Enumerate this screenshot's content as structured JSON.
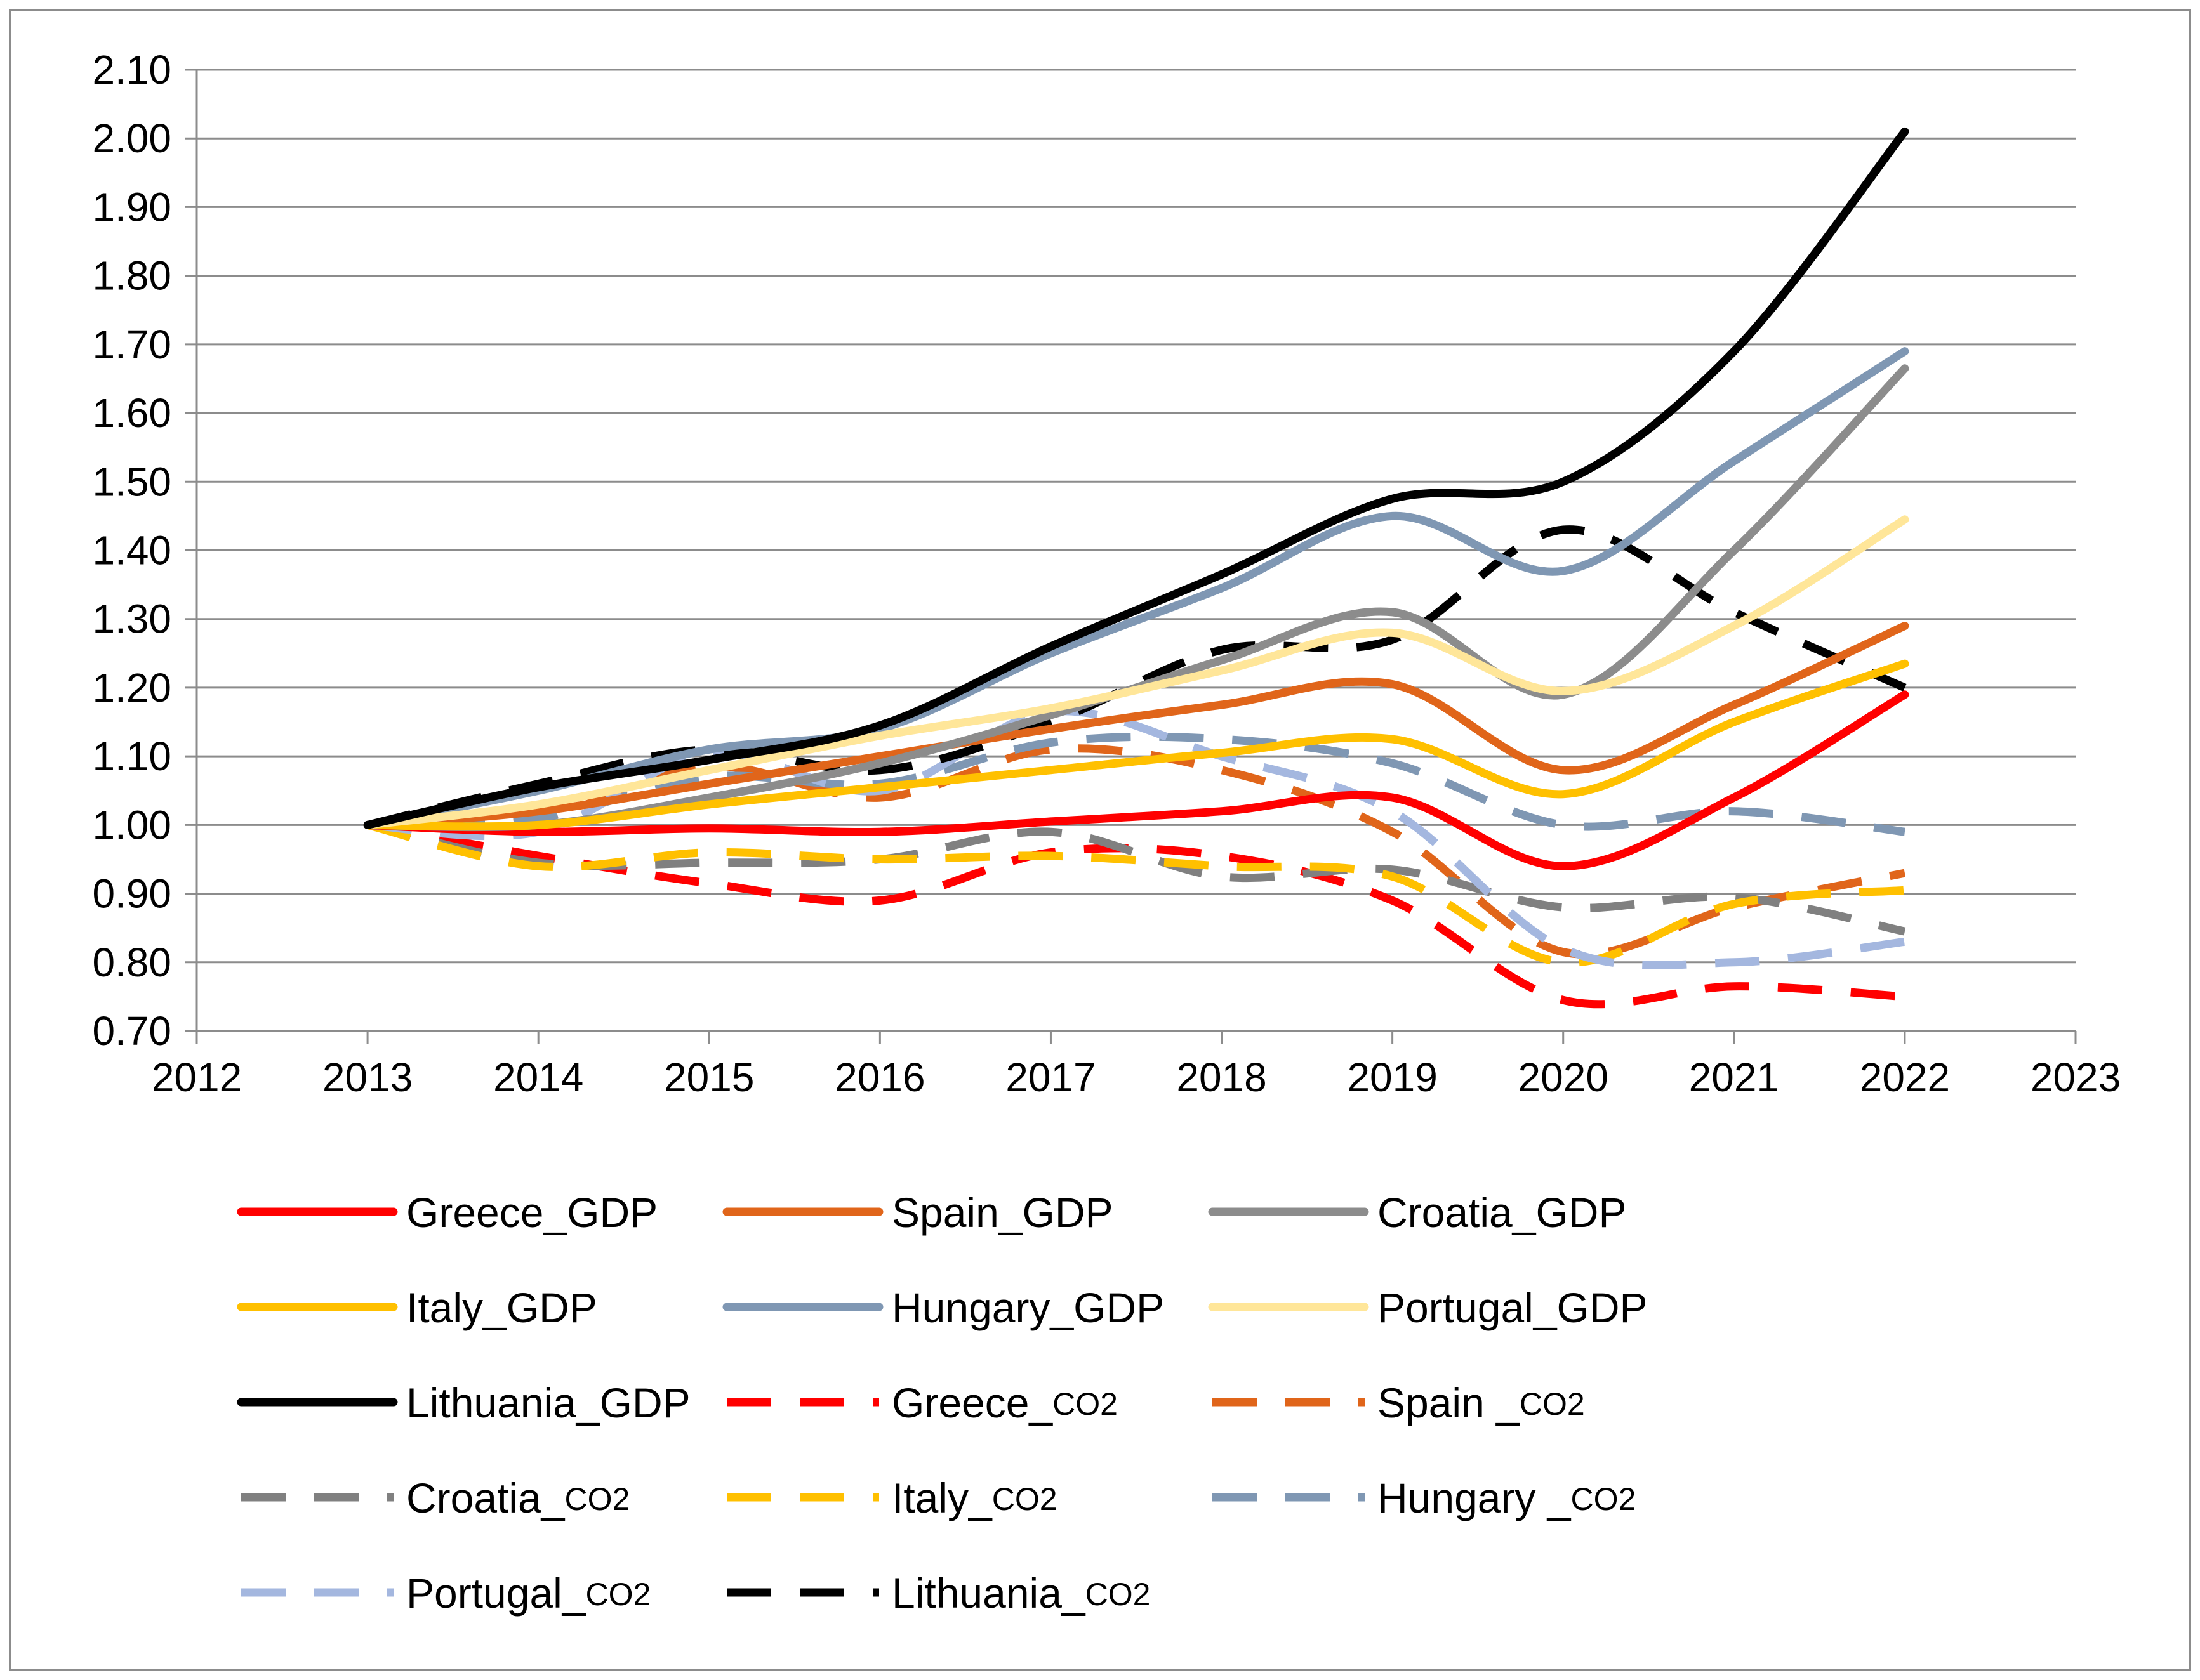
{
  "chart_data": {
    "type": "line",
    "title": "",
    "xlabel": "",
    "ylabel": "",
    "xlim": [
      2012,
      2023
    ],
    "ylim": [
      0.7,
      2.1
    ],
    "x_ticks": [
      "2012",
      "2013",
      "2014",
      "2015",
      "2016",
      "2017",
      "2018",
      "2019",
      "2020",
      "2021",
      "2022",
      "2023"
    ],
    "y_ticks": [
      "0.70",
      "0.80",
      "0.90",
      "1.00",
      "1.10",
      "1.20",
      "1.30",
      "1.40",
      "1.50",
      "1.60",
      "1.70",
      "1.80",
      "1.90",
      "2.00",
      "2.10"
    ],
    "grid": "horizontal",
    "legend_position": "bottom",
    "x": [
      2013,
      2014,
      2015,
      2016,
      2017,
      2018,
      2019,
      2020,
      2021,
      2022
    ],
    "series": [
      {
        "name": "Greece_GDP",
        "legend_label": "Greece_GDP",
        "legend_sub": "",
        "color": "#ff0000",
        "dash": "solid",
        "values": [
          1.0,
          0.99,
          0.995,
          0.99,
          1.005,
          1.02,
          1.04,
          0.94,
          1.04,
          1.19
        ]
      },
      {
        "name": "Spain_GDP",
        "legend_label": "Spain_GDP",
        "legend_sub": "",
        "color": "#e0651a",
        "dash": "solid",
        "values": [
          1.0,
          1.02,
          1.06,
          1.1,
          1.14,
          1.175,
          1.205,
          1.08,
          1.175,
          1.29
        ]
      },
      {
        "name": "Croatia_GDP",
        "legend_label": "Croatia_GDP",
        "legend_sub": "",
        "color": "#8c8c8c",
        "dash": "solid",
        "values": [
          1.0,
          1.0,
          1.04,
          1.09,
          1.16,
          1.24,
          1.31,
          1.19,
          1.4,
          1.665
        ]
      },
      {
        "name": "Italy_GDP",
        "legend_label": "Italy_GDP",
        "legend_sub": "",
        "color": "#ffc000",
        "dash": "solid",
        "values": [
          1.0,
          1.0,
          1.03,
          1.055,
          1.08,
          1.105,
          1.125,
          1.045,
          1.15,
          1.235
        ]
      },
      {
        "name": "Hungary_GDP",
        "legend_label": "Hungary_GDP",
        "legend_sub": "",
        "color": "#7f97b3",
        "dash": "solid",
        "values": [
          1.0,
          1.05,
          1.11,
          1.14,
          1.25,
          1.345,
          1.45,
          1.37,
          1.53,
          1.69
        ]
      },
      {
        "name": "Portugal_GDP",
        "legend_label": "Portugal_GDP",
        "legend_sub": "",
        "color": "#ffe699",
        "dash": "solid",
        "values": [
          1.0,
          1.03,
          1.08,
          1.13,
          1.17,
          1.225,
          1.28,
          1.195,
          1.29,
          1.445
        ]
      },
      {
        "name": "Lithuania_GDP",
        "legend_label": "Lithuania_GDP",
        "legend_sub": "",
        "color": "#000000",
        "dash": "solid",
        "values": [
          1.0,
          1.055,
          1.095,
          1.145,
          1.26,
          1.365,
          1.475,
          1.5,
          1.69,
          2.01
        ]
      },
      {
        "name": "Greece_CO2",
        "legend_label": "Greece_",
        "legend_sub": "CO2",
        "color": "#ff0000",
        "dash": "dashed",
        "values": [
          1.0,
          0.955,
          0.915,
          0.89,
          0.96,
          0.955,
          0.89,
          0.745,
          0.765,
          0.75
        ]
      },
      {
        "name": "Spain_CO2",
        "legend_label": "Spain _",
        "legend_sub": "CO2",
        "color": "#e0651a",
        "dash": "dashed",
        "values": [
          1.0,
          1.01,
          1.085,
          1.04,
          1.11,
          1.08,
          0.99,
          0.815,
          0.88,
          0.93
        ]
      },
      {
        "name": "Croatia_CO2",
        "legend_label": "Croatia_",
        "legend_sub": "CO2",
        "color": "#808080",
        "dash": "dashed",
        "values": [
          1.0,
          0.945,
          0.945,
          0.95,
          0.99,
          0.925,
          0.935,
          0.88,
          0.895,
          0.845
        ]
      },
      {
        "name": "Italy_CO2",
        "legend_label": "Italy_",
        "legend_sub": "CO2",
        "color": "#ffc000",
        "dash": "dashed",
        "values": [
          1.0,
          0.94,
          0.96,
          0.95,
          0.955,
          0.94,
          0.925,
          0.8,
          0.885,
          0.905
        ]
      },
      {
        "name": "Hungary_CO2",
        "legend_label": "Hungary _",
        "legend_sub": "CO2",
        "color": "#7f97b3",
        "dash": "dashed",
        "values": [
          1.0,
          1.01,
          1.07,
          1.06,
          1.12,
          1.125,
          1.09,
          1.0,
          1.02,
          0.99
        ]
      },
      {
        "name": "Portugal_CO2",
        "legend_label": "Portugal_",
        "legend_sub": "CO2",
        "color": "#a4b7df",
        "dash": "dashed",
        "values": [
          1.0,
          0.99,
          1.105,
          1.05,
          1.165,
          1.1,
          1.02,
          0.82,
          0.8,
          0.83
        ]
      },
      {
        "name": "Lithuania_CO2",
        "legend_label": "Lithuania_",
        "legend_sub": "CO2",
        "color": "#000000",
        "dash": "dashed",
        "values": [
          1.0,
          1.06,
          1.11,
          1.08,
          1.15,
          1.255,
          1.27,
          1.43,
          1.31,
          1.2
        ]
      }
    ]
  }
}
